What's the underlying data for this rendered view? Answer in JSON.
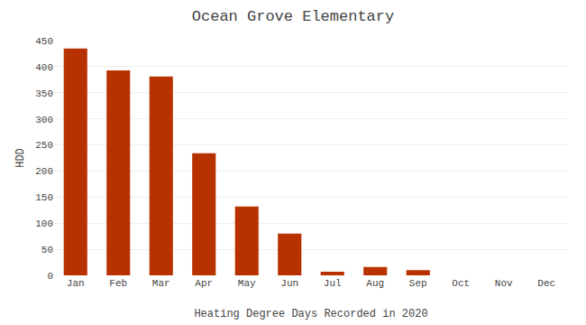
{
  "chart_data": {
    "type": "bar",
    "title": "Ocean Grove Elementary",
    "xlabel": "Heating Degree Days Recorded in 2020",
    "ylabel": "HDD",
    "categories": [
      "Jan",
      "Feb",
      "Mar",
      "Apr",
      "May",
      "Jun",
      "Jul",
      "Aug",
      "Sep",
      "Oct",
      "Nov",
      "Dec"
    ],
    "values": [
      435,
      393,
      381,
      234,
      132,
      80,
      7,
      16,
      10,
      0,
      0,
      0
    ],
    "color": "#b83200",
    "ylim": [
      0,
      450
    ],
    "yticks": [
      0,
      50,
      100,
      150,
      200,
      250,
      300,
      350,
      400,
      450
    ],
    "grid": true
  }
}
